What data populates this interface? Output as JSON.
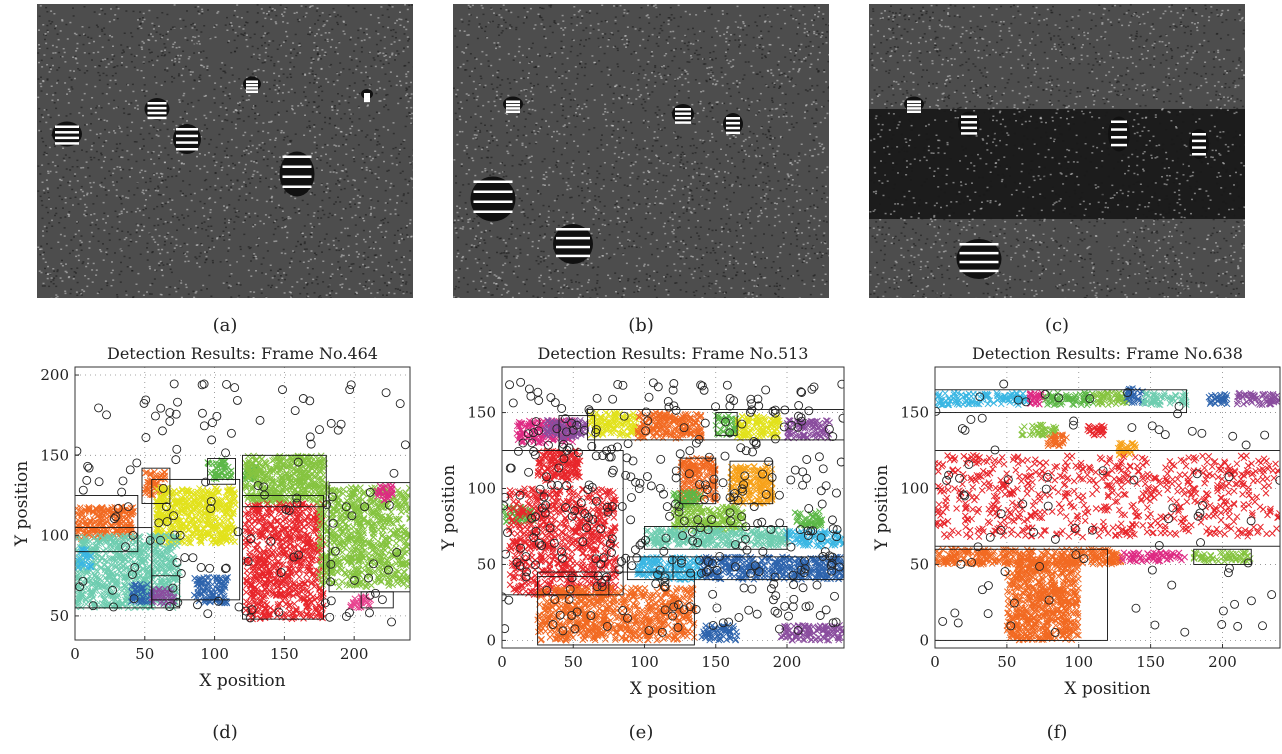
{
  "captions": {
    "a": "(a)",
    "b": "(b)",
    "c": "(c)",
    "d": "(d)",
    "e": "(e)",
    "f": "(f)"
  },
  "image_panels": [
    {
      "id": "a",
      "icon": "thresholded-traffic-frame-icon"
    },
    {
      "id": "b",
      "icon": "thresholded-traffic-frame-icon"
    },
    {
      "id": "c",
      "icon": "thresholded-traffic-frame-icon"
    }
  ],
  "colors": {
    "background_gray": "#4d4d4d",
    "point_marker": "#222222",
    "red": "#e8262b",
    "orange": "#f26a22",
    "amber": "#f7a21b",
    "yellow": "#e2e21c",
    "lime": "#86c440",
    "green": "#5cb847",
    "teal": "#6fcdb0",
    "cyan": "#3bb7e3",
    "blue": "#2e64ad",
    "purple": "#8a4d9e",
    "magenta": "#de2a82",
    "pink": "#e84590"
  },
  "chart_data": [
    {
      "type": "scatter",
      "id": "d",
      "title": "Detection Results: Frame No.464",
      "xlabel": "X position",
      "ylabel": "Y position",
      "xlim": [
        0,
        240
      ],
      "ylim": [
        35,
        205
      ],
      "xticks": [
        0,
        50,
        100,
        150,
        200
      ],
      "yticks": [
        50,
        100,
        150,
        200
      ],
      "grid": "dotted",
      "clusters": [
        {
          "color": "orange",
          "x": [
            0,
            42
          ],
          "y": [
            98,
            118
          ]
        },
        {
          "color": "orange",
          "x": [
            50,
            65
          ],
          "y": [
            125,
            140
          ]
        },
        {
          "color": "yellow",
          "x": [
            58,
            115
          ],
          "y": [
            95,
            130
          ]
        },
        {
          "color": "teal",
          "x": [
            0,
            75
          ],
          "y": [
            55,
            100
          ]
        },
        {
          "color": "cyan",
          "x": [
            2,
            12
          ],
          "y": [
            80,
            92
          ]
        },
        {
          "color": "blue",
          "x": [
            40,
            55
          ],
          "y": [
            58,
            70
          ]
        },
        {
          "color": "purple",
          "x": [
            55,
            72
          ],
          "y": [
            57,
            67
          ]
        },
        {
          "color": "blue",
          "x": [
            85,
            110
          ],
          "y": [
            58,
            74
          ]
        },
        {
          "color": "green",
          "x": [
            95,
            112
          ],
          "y": [
            135,
            147
          ]
        },
        {
          "color": "green",
          "x": [
            122,
            130
          ],
          "y": [
            135,
            144
          ]
        },
        {
          "color": "lime",
          "x": [
            122,
            180
          ],
          "y": [
            120,
            150
          ]
        },
        {
          "color": "red",
          "x": [
            122,
            178
          ],
          "y": [
            48,
            120
          ]
        },
        {
          "color": "lime",
          "x": [
            175,
            240
          ],
          "y": [
            68,
            130
          ]
        },
        {
          "color": "pink",
          "x": [
            197,
            212
          ],
          "y": [
            55,
            62
          ]
        },
        {
          "color": "magenta",
          "x": [
            216,
            228
          ],
          "y": [
            122,
            132
          ]
        }
      ],
      "boxes": [
        {
          "x": [
            0,
            45
          ],
          "y": [
            90,
            125
          ]
        },
        {
          "x": [
            0,
            55
          ],
          "y": [
            55,
            105
          ]
        },
        {
          "x": [
            55,
            75
          ],
          "y": [
            55,
            75
          ]
        },
        {
          "x": [
            48,
            68
          ],
          "y": [
            120,
            142
          ]
        },
        {
          "x": [
            55,
            118
          ],
          "y": [
            60,
            135
          ]
        },
        {
          "x": [
            95,
            115
          ],
          "y": [
            132,
            148
          ]
        },
        {
          "x": [
            120,
            178
          ],
          "y": [
            48,
            125
          ]
        },
        {
          "x": [
            120,
            180
          ],
          "y": [
            118,
            150
          ]
        },
        {
          "x": [
            182,
            240
          ],
          "y": [
            65,
            133
          ]
        },
        {
          "x": [
            205,
            228
          ],
          "y": [
            55,
            65
          ]
        }
      ],
      "points_count": 140,
      "points_seed": 464
    },
    {
      "type": "scatter",
      "id": "e",
      "title": "Detection Results: Frame No.513",
      "xlabel": "X position",
      "ylabel": "Y position",
      "xlim": [
        0,
        240
      ],
      "ylim": [
        -5,
        180
      ],
      "xticks": [
        0,
        50,
        100,
        150,
        200
      ],
      "yticks": [
        0,
        50,
        100,
        150
      ],
      "grid": "dotted",
      "clusters": [
        {
          "color": "magenta",
          "x": [
            10,
            50
          ],
          "y": [
            130,
            145
          ]
        },
        {
          "color": "purple",
          "x": [
            30,
            60
          ],
          "y": [
            133,
            145
          ]
        },
        {
          "color": "yellow",
          "x": [
            62,
            95
          ],
          "y": [
            135,
            150
          ]
        },
        {
          "color": "orange",
          "x": [
            95,
            140
          ],
          "y": [
            133,
            150
          ]
        },
        {
          "color": "green",
          "x": [
            150,
            165
          ],
          "y": [
            135,
            148
          ]
        },
        {
          "color": "yellow",
          "x": [
            165,
            195
          ],
          "y": [
            133,
            148
          ]
        },
        {
          "color": "purple",
          "x": [
            200,
            230
          ],
          "y": [
            133,
            145
          ]
        },
        {
          "color": "red",
          "x": [
            25,
            55
          ],
          "y": [
            105,
            125
          ]
        },
        {
          "color": "orange",
          "x": [
            125,
            150
          ],
          "y": [
            92,
            120
          ]
        },
        {
          "color": "amber",
          "x": [
            160,
            190
          ],
          "y": [
            90,
            115
          ]
        },
        {
          "color": "green",
          "x": [
            0,
            22
          ],
          "y": [
            78,
            88
          ]
        },
        {
          "color": "red",
          "x": [
            5,
            80
          ],
          "y": [
            30,
            100
          ]
        },
        {
          "color": "green",
          "x": [
            120,
            140
          ],
          "y": [
            88,
            98
          ]
        },
        {
          "color": "lime",
          "x": [
            120,
            170
          ],
          "y": [
            72,
            88
          ]
        },
        {
          "color": "green",
          "x": [
            205,
            225
          ],
          "y": [
            75,
            85
          ]
        },
        {
          "color": "teal",
          "x": [
            100,
            200
          ],
          "y": [
            62,
            73
          ]
        },
        {
          "color": "cyan",
          "x": [
            200,
            240
          ],
          "y": [
            62,
            72
          ]
        },
        {
          "color": "cyan",
          "x": [
            95,
            140
          ],
          "y": [
            40,
            55
          ]
        },
        {
          "color": "blue",
          "x": [
            140,
            240
          ],
          "y": [
            40,
            55
          ]
        },
        {
          "color": "orange",
          "x": [
            25,
            135
          ],
          "y": [
            0,
            35
          ]
        },
        {
          "color": "blue",
          "x": [
            140,
            165
          ],
          "y": [
            0,
            10
          ]
        },
        {
          "color": "purple",
          "x": [
            195,
            240
          ],
          "y": [
            0,
            10
          ]
        }
      ],
      "boxes": [
        {
          "x": [
            0,
            85
          ],
          "y": [
            30,
            125
          ]
        },
        {
          "x": [
            25,
            135
          ],
          "y": [
            -3,
            45
          ]
        },
        {
          "x": [
            25,
            75
          ],
          "y": [
            30,
            42
          ]
        },
        {
          "x": [
            60,
            240
          ],
          "y": [
            132,
            152
          ]
        },
        {
          "x": [
            88,
            120
          ],
          "y": [
            40,
            55
          ]
        },
        {
          "x": [
            120,
            240
          ],
          "y": [
            40,
            55
          ]
        },
        {
          "x": [
            100,
            200
          ],
          "y": [
            60,
            75
          ]
        },
        {
          "x": [
            125,
            150
          ],
          "y": [
            90,
            120
          ]
        },
        {
          "x": [
            160,
            190
          ],
          "y": [
            90,
            118
          ]
        },
        {
          "x": [
            40,
            65
          ],
          "y": [
            125,
            148
          ]
        },
        {
          "x": [
            150,
            165
          ],
          "y": [
            135,
            150
          ]
        }
      ],
      "points_count": 380,
      "points_seed": 513
    },
    {
      "type": "scatter",
      "id": "f",
      "title": "Detection Results: Frame No.638",
      "xlabel": "X position",
      "ylabel": "Y position",
      "xlim": [
        0,
        240
      ],
      "ylim": [
        -5,
        180
      ],
      "xticks": [
        0,
        50,
        100,
        150,
        200
      ],
      "yticks": [
        0,
        50,
        100,
        150
      ],
      "grid": "dotted",
      "clusters": [
        {
          "color": "cyan",
          "x": [
            0,
            38
          ],
          "y": [
            155,
            163
          ]
        },
        {
          "color": "cyan",
          "x": [
            38,
            65
          ],
          "y": [
            155,
            163
          ]
        },
        {
          "color": "magenta",
          "x": [
            65,
            75
          ],
          "y": [
            155,
            163
          ]
        },
        {
          "color": "green",
          "x": [
            75,
            110
          ],
          "y": [
            155,
            163
          ]
        },
        {
          "color": "lime",
          "x": [
            110,
            135
          ],
          "y": [
            155,
            163
          ]
        },
        {
          "color": "blue",
          "x": [
            133,
            145
          ],
          "y": [
            156,
            166
          ]
        },
        {
          "color": "teal",
          "x": [
            145,
            175
          ],
          "y": [
            155,
            163
          ]
        },
        {
          "color": "blue",
          "x": [
            190,
            205
          ],
          "y": [
            155,
            162
          ]
        },
        {
          "color": "purple",
          "x": [
            210,
            240
          ],
          "y": [
            155,
            163
          ]
        },
        {
          "color": "lime",
          "x": [
            60,
            85
          ],
          "y": [
            135,
            142
          ]
        },
        {
          "color": "red",
          "x": [
            105,
            118
          ],
          "y": [
            135,
            142
          ]
        },
        {
          "color": "orange",
          "x": [
            78,
            92
          ],
          "y": [
            128,
            136
          ]
        },
        {
          "color": "amber",
          "x": [
            127,
            140
          ],
          "y": [
            122,
            130
          ]
        },
        {
          "color": "red",
          "x": [
            0,
            240
          ],
          "y": [
            68,
            122
          ]
        },
        {
          "color": "orange",
          "x": [
            0,
            130
          ],
          "y": [
            50,
            60
          ]
        },
        {
          "color": "orange",
          "x": [
            50,
            100
          ],
          "y": [
            0,
            52
          ]
        },
        {
          "color": "magenta",
          "x": [
            130,
            175
          ],
          "y": [
            52,
            58
          ]
        },
        {
          "color": "lime",
          "x": [
            180,
            220
          ],
          "y": [
            52,
            58
          ]
        }
      ],
      "boxes": [
        {
          "x": [
            0,
            240
          ],
          "y": [
            62,
            125
          ]
        },
        {
          "x": [
            0,
            120
          ],
          "y": [
            0,
            60
          ]
        },
        {
          "x": [
            0,
            175
          ],
          "y": [
            150,
            165
          ]
        },
        {
          "x": [
            180,
            220
          ],
          "y": [
            50,
            60
          ]
        }
      ],
      "points_count": 90,
      "points_seed": 638
    }
  ]
}
